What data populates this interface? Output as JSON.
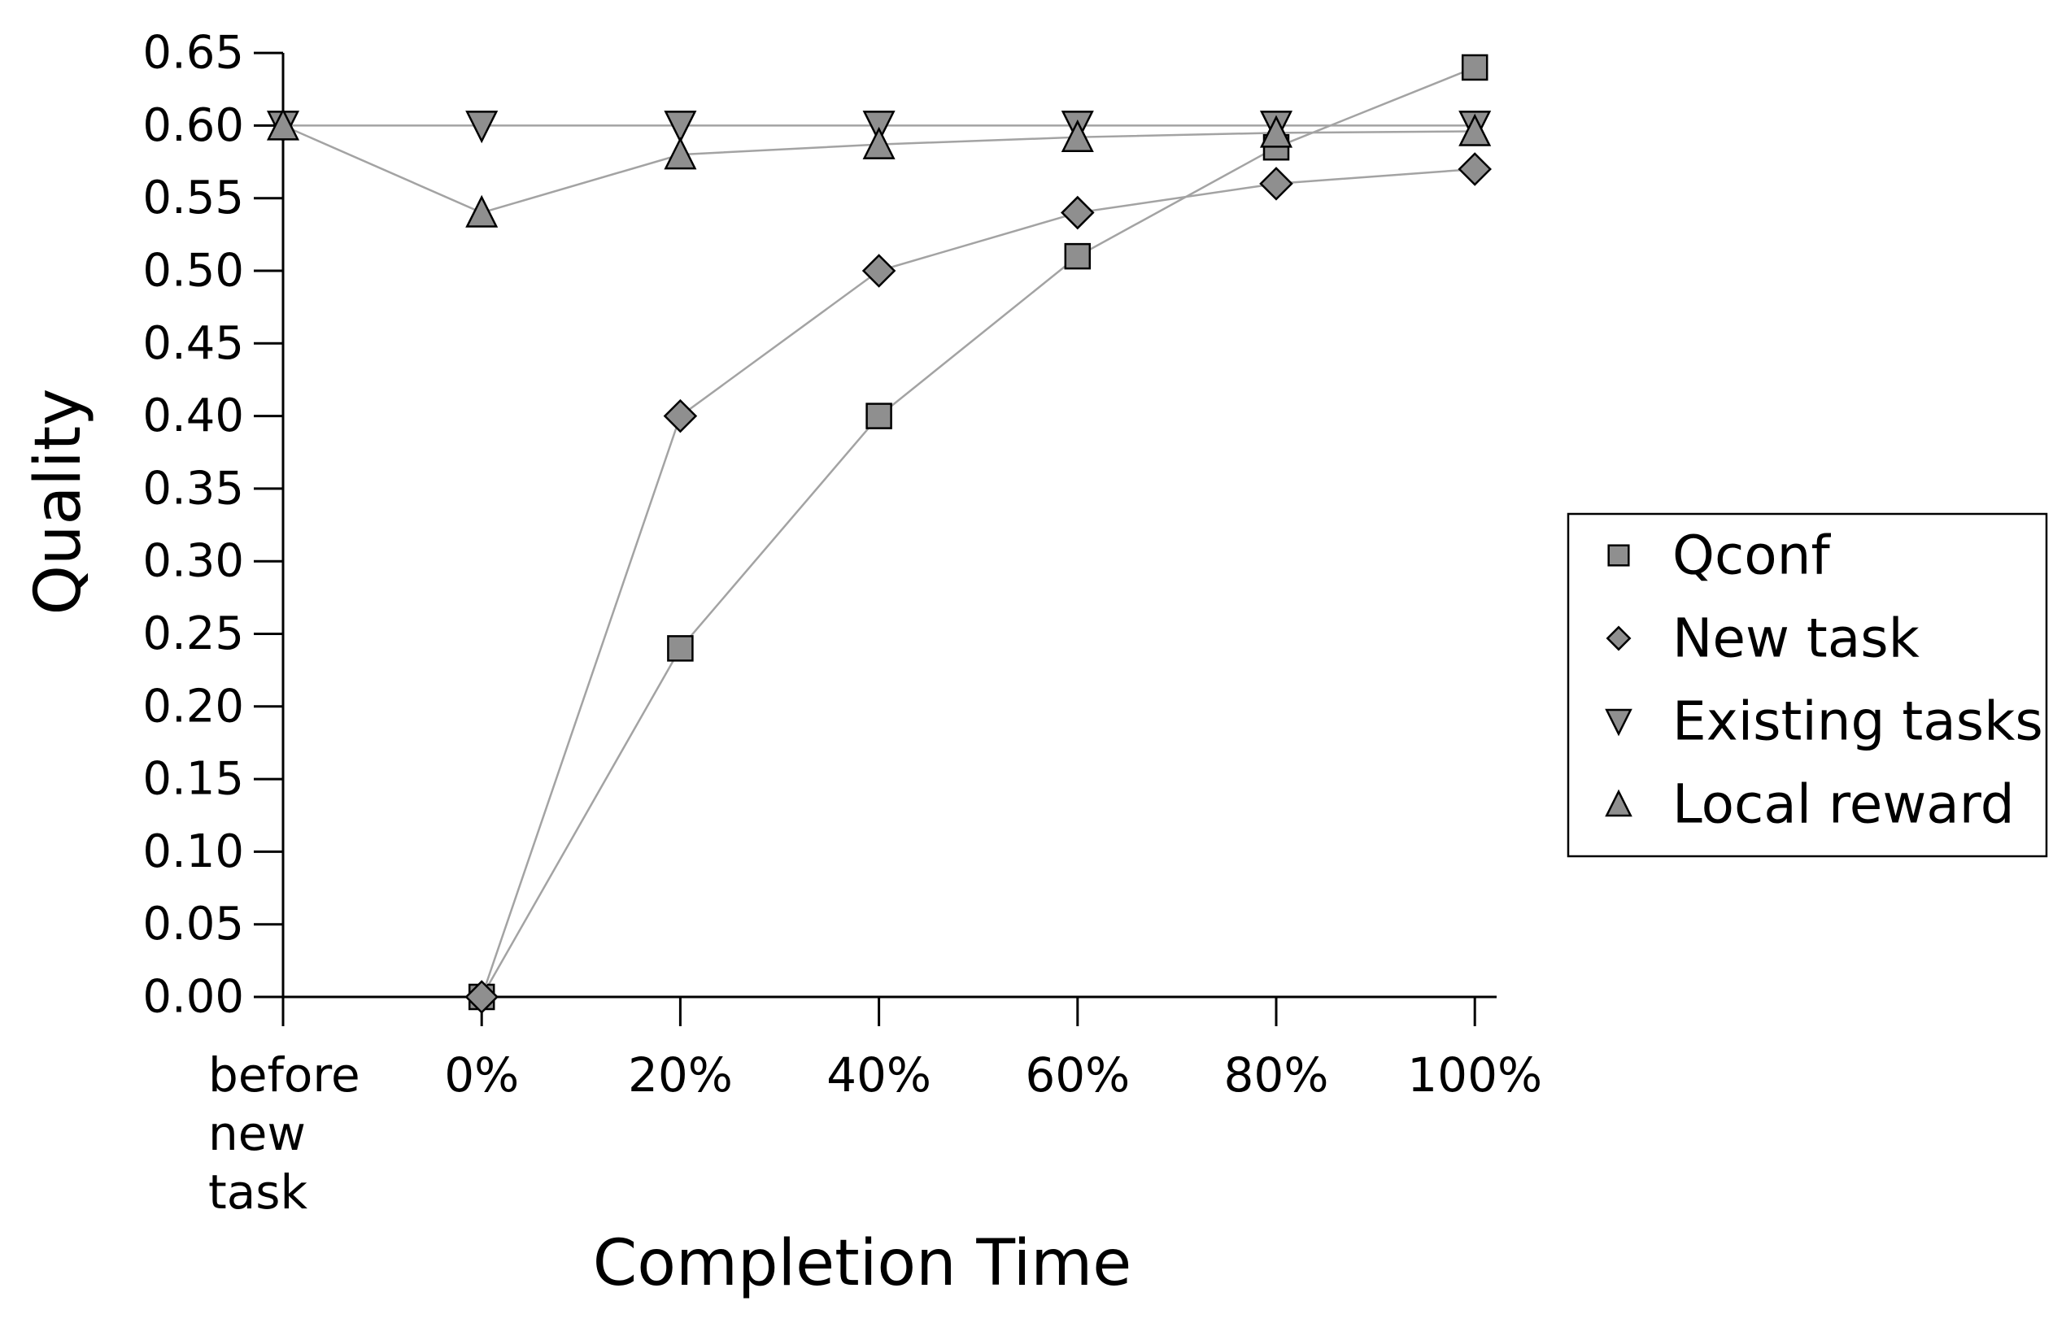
{
  "figure": {
    "xlabel": "Completion Time",
    "ylabel": "Quality"
  },
  "chart_data": {
    "type": "line",
    "title": "",
    "xlabel": "Completion Time",
    "ylabel": "Quality",
    "categories": [
      "before new task",
      "0%",
      "20%",
      "40%",
      "60%",
      "80%",
      "100%"
    ],
    "x_tick_labels": [
      [
        "before",
        "new",
        "task"
      ],
      [
        "0%"
      ],
      [
        "20%"
      ],
      [
        "40%"
      ],
      [
        "60%"
      ],
      [
        "80%"
      ],
      [
        "100%"
      ]
    ],
    "y_ticks": [
      0.0,
      0.05,
      0.1,
      0.15,
      0.2,
      0.25,
      0.3,
      0.35,
      0.4,
      0.45,
      0.5,
      0.55,
      0.6,
      0.65
    ],
    "y_tick_labels": [
      "0.00",
      "0.05",
      "0.10",
      "0.15",
      "0.20",
      "0.25",
      "0.30",
      "0.35",
      "0.40",
      "0.45",
      "0.50",
      "0.55",
      "0.60",
      "0.65"
    ],
    "ylim": [
      0,
      0.65
    ],
    "grid": false,
    "legend_position": "right",
    "series": [
      {
        "name": "Qconf",
        "marker": "square",
        "values": [
          null,
          0.0,
          0.24,
          0.4,
          0.51,
          0.585,
          0.64
        ]
      },
      {
        "name": "New task",
        "marker": "diamond",
        "values": [
          null,
          0.0,
          0.4,
          0.5,
          0.54,
          0.56,
          0.57
        ]
      },
      {
        "name": "Existing tasks",
        "marker": "triangle-down",
        "values": [
          0.6,
          0.6,
          0.6,
          0.6,
          0.6,
          0.6,
          0.6
        ]
      },
      {
        "name": "Local reward",
        "marker": "triangle-up",
        "values": [
          0.6,
          0.54,
          0.58,
          0.587,
          0.592,
          0.595,
          0.596
        ]
      }
    ],
    "colors": {
      "marker_fill": "#8f8f8f",
      "marker_stroke": "#000000",
      "line": "#a3a3a3",
      "axis": "#000000",
      "text": "#000000",
      "background": "#ffffff",
      "legend_border": "#000000"
    }
  }
}
